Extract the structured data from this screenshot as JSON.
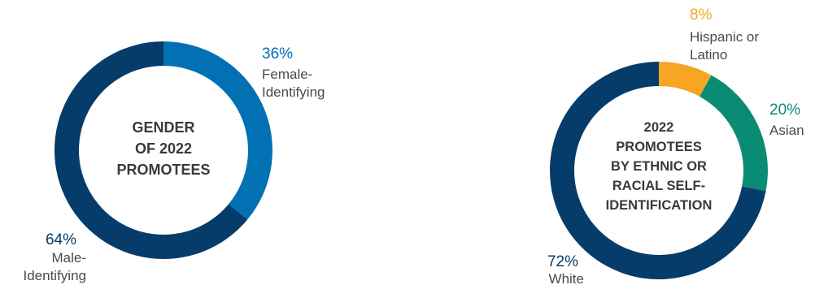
{
  "chart_data": [
    {
      "type": "pie",
      "donut": true,
      "title_lines": [
        "GENDER",
        "OF 2022",
        "PROMOTEES"
      ],
      "slices": [
        {
          "label_lines": [
            "Female-",
            "Identifying"
          ],
          "value": 36,
          "value_label": "36%",
          "color": "#0271b3"
        },
        {
          "label_lines": [
            "Male-",
            "Identifying"
          ],
          "value": 64,
          "value_label": "64%",
          "color": "#053c6a"
        }
      ]
    },
    {
      "type": "pie",
      "donut": true,
      "title_lines": [
        "2022",
        "PROMOTEES",
        "BY ETHNIC OR",
        "RACIAL SELF-",
        "IDENTIFICATION"
      ],
      "slices": [
        {
          "label_lines": [
            "Hispanic or",
            "Latino"
          ],
          "value": 8,
          "value_label": "8%",
          "color": "#f6a623"
        },
        {
          "label_lines": [
            "Asian"
          ],
          "value": 20,
          "value_label": "20%",
          "color": "#0a8b73"
        },
        {
          "label_lines": [
            "White"
          ],
          "value": 72,
          "value_label": "72%",
          "color": "#053c6a"
        }
      ]
    }
  ]
}
